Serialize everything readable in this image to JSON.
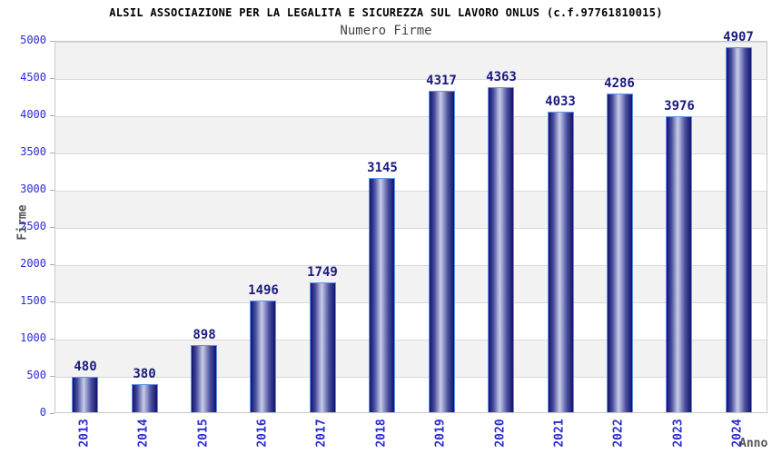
{
  "chart_data": {
    "type": "bar",
    "title": "ALSIL ASSOCIAZIONE PER LA LEGALITA E SICUREZZA SUL LAVORO ONLUS (c.f.97761810015)",
    "subtitle": "Numero Firme",
    "xlabel": "Anno",
    "ylabel": "Firme",
    "categories": [
      "2013",
      "2014",
      "2015",
      "2016",
      "2017",
      "2018",
      "2019",
      "2020",
      "2021",
      "2022",
      "2023",
      "2024"
    ],
    "values": [
      480,
      380,
      898,
      1496,
      1749,
      3145,
      4317,
      4363,
      4033,
      4286,
      3976,
      4907
    ],
    "ylim": [
      0,
      5000
    ],
    "ytick_step": 500,
    "grid": "horizontal-bands-alternating",
    "legend": "none"
  },
  "style": {
    "bar_border_color": "#5f93ee",
    "bar_edge_color": "#13136e",
    "bar_mid_color": "#4a4f9e",
    "bar_highlight_color": "#c9cde9",
    "value_label_color": "#1a1a80",
    "tick_label_color": "#2b2bd0",
    "band_gray": "#f2f2f2",
    "band_white": "#ffffff",
    "gridline_color": "#d9d9d9",
    "plot_border_color": "#c8c8c8",
    "title_color": "#000000",
    "subtitle_color": "#454545",
    "axis_title_color": "#545454",
    "background": "#ffffff"
  }
}
